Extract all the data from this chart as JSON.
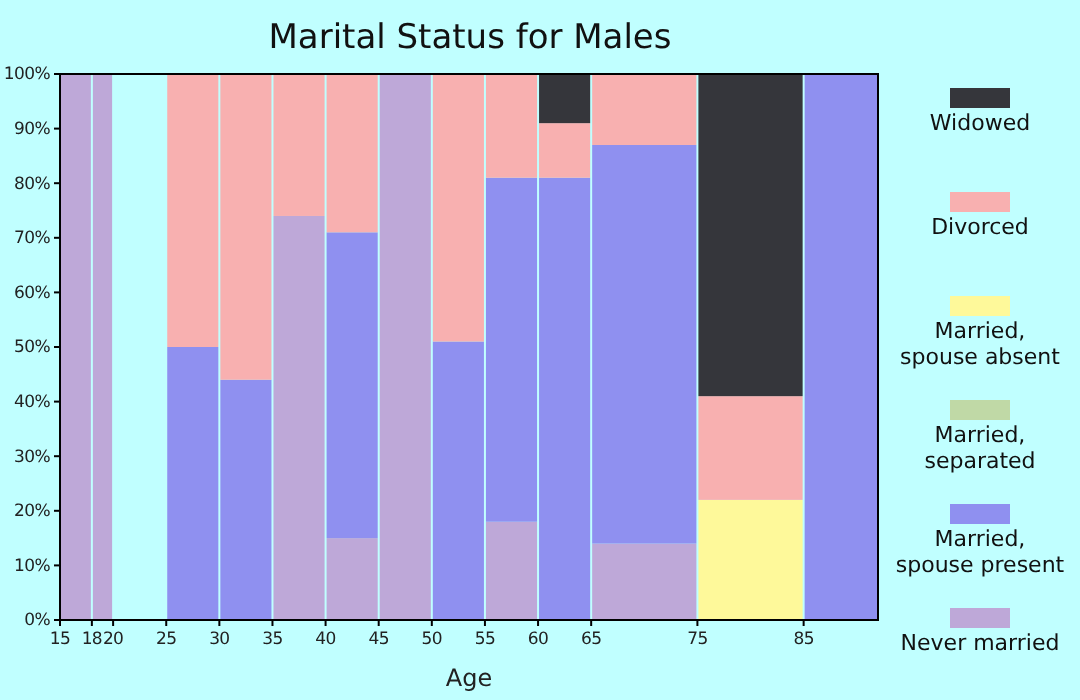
{
  "chart_data": {
    "type": "bar",
    "title": "Marital Status for Males",
    "xlabel": "Age",
    "stacked": true,
    "grid": false,
    "legend": "right",
    "x": [
      16.5,
      19,
      22.5,
      27.5,
      32.5,
      37.5,
      42.5,
      47.5,
      52.5,
      57.5,
      62.5,
      70,
      80,
      88.5
    ],
    "xlim": [
      15,
      92
    ],
    "xticks": [
      15,
      18,
      20,
      25,
      30,
      35,
      40,
      45,
      50,
      55,
      60,
      65,
      75,
      85
    ],
    "ylim": [
      0,
      100
    ],
    "yticks": [
      {
        "value": 0,
        "label": "0%"
      },
      {
        "value": 10,
        "label": "10%"
      },
      {
        "value": 20,
        "label": "20%"
      },
      {
        "value": 30,
        "label": "30%"
      },
      {
        "value": 40,
        "label": "40%"
      },
      {
        "value": 50,
        "label": "50%"
      },
      {
        "value": 60,
        "label": "60%"
      },
      {
        "value": 70,
        "label": "70%"
      },
      {
        "value": 80,
        "label": "80%"
      },
      {
        "value": 90,
        "label": "90%"
      },
      {
        "value": 100,
        "label": "100%"
      }
    ],
    "series": [
      {
        "name": "Never married",
        "color": "#bea8d8",
        "values": [
          100,
          100,
          null,
          0,
          0,
          74,
          15,
          100,
          0,
          18,
          0,
          14,
          0,
          0
        ]
      },
      {
        "name": "Married, spouse present",
        "color": "#8f90f0",
        "values": [
          0,
          0,
          null,
          50,
          44,
          0,
          56,
          0,
          51,
          63,
          81,
          73,
          0,
          100
        ]
      },
      {
        "name": "Married, separated",
        "color": "#c0d9a6",
        "values": [
          0,
          0,
          null,
          0,
          0,
          0,
          0,
          0,
          0,
          0,
          0,
          0,
          0,
          0
        ]
      },
      {
        "name": "Married, spouse absent",
        "color": "#fef99a",
        "values": [
          0,
          0,
          null,
          0,
          0,
          0,
          0,
          0,
          0,
          0,
          0,
          0,
          22,
          0
        ]
      },
      {
        "name": "Divorced",
        "color": "#f8b0b0",
        "values": [
          0,
          0,
          null,
          50,
          56,
          26,
          29,
          0,
          49,
          19,
          10,
          13,
          19,
          0
        ]
      },
      {
        "name": "Widowed",
        "color": "#35363b",
        "values": [
          0,
          0,
          null,
          0,
          0,
          0,
          0,
          0,
          0,
          0,
          9,
          0,
          59,
          0
        ]
      }
    ]
  }
}
